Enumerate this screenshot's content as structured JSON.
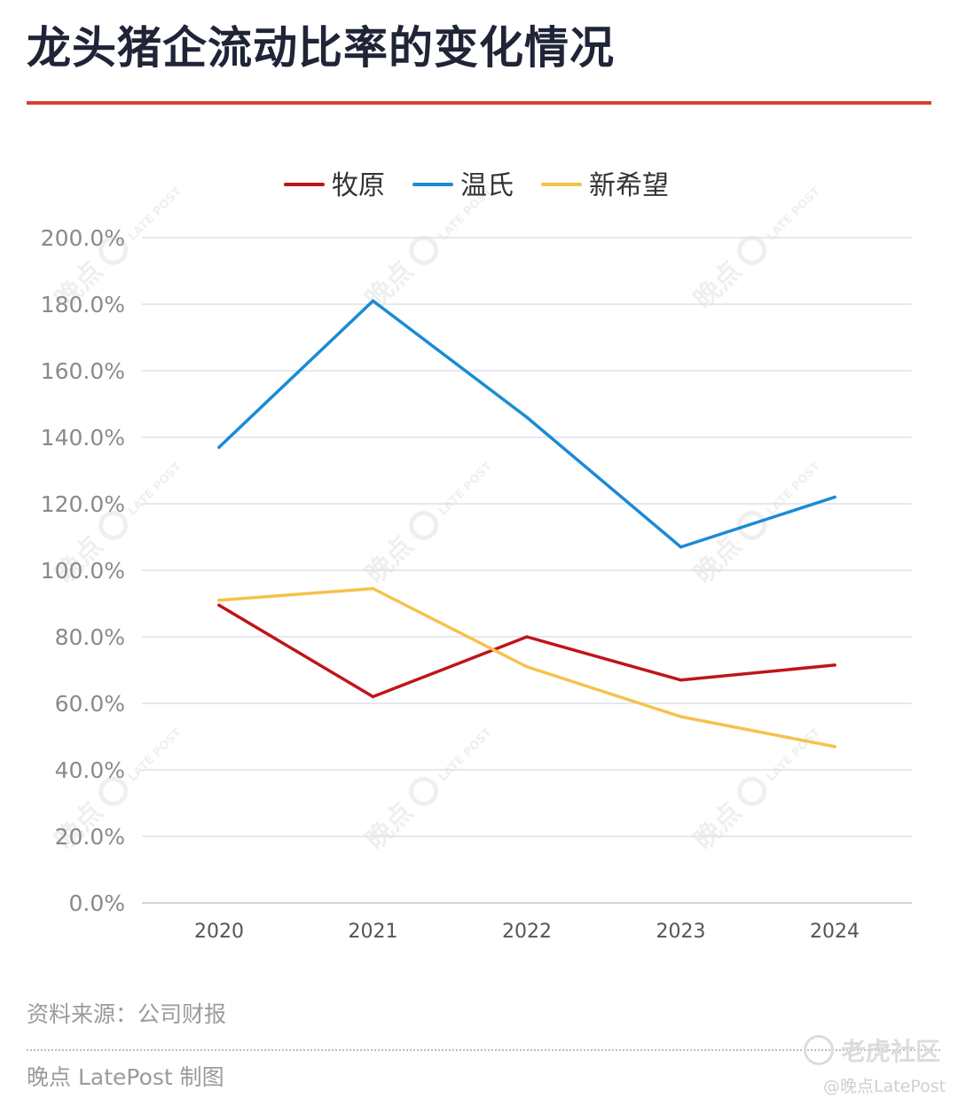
{
  "title": "龙头猪企流动比率的变化情况",
  "source_note": "资料来源：公司财报",
  "credit": "晚点 LatePost 制图",
  "watermarks": {
    "logo_text": "老虎社区",
    "handle": "@晚点LatePost",
    "tile_chars": "晚点",
    "tile_latin": "LATE POST"
  },
  "colors": {
    "title_rule": "#d7412f",
    "muyuan": "#c0141b",
    "wens": "#1a8bd6",
    "newhope": "#f5c24b",
    "grid": "#dde0ee",
    "tick_text": "#8a8a8a"
  },
  "chart_data": {
    "type": "line",
    "title": "龙头猪企流动比率的变化情况",
    "xlabel": "",
    "ylabel": "",
    "categories": [
      "2020",
      "2021",
      "2022",
      "2023",
      "2024"
    ],
    "ylim": [
      0,
      200
    ],
    "yticks": [
      "0.0%",
      "20.0%",
      "40.0%",
      "60.0%",
      "80.0%",
      "100.0%",
      "120.0%",
      "140.0%",
      "160.0%",
      "180.0%",
      "200.0%"
    ],
    "grid": true,
    "legend_position": "top-center",
    "series": [
      {
        "name": "牧原",
        "color": "#c0141b",
        "values": [
          89.5,
          62,
          80,
          67,
          71.5
        ]
      },
      {
        "name": "温氏",
        "color": "#1a8bd6",
        "values": [
          137,
          181,
          146,
          107,
          122
        ]
      },
      {
        "name": "新希望",
        "color": "#f5c24b",
        "values": [
          91,
          94.5,
          71,
          56,
          47
        ]
      }
    ]
  }
}
